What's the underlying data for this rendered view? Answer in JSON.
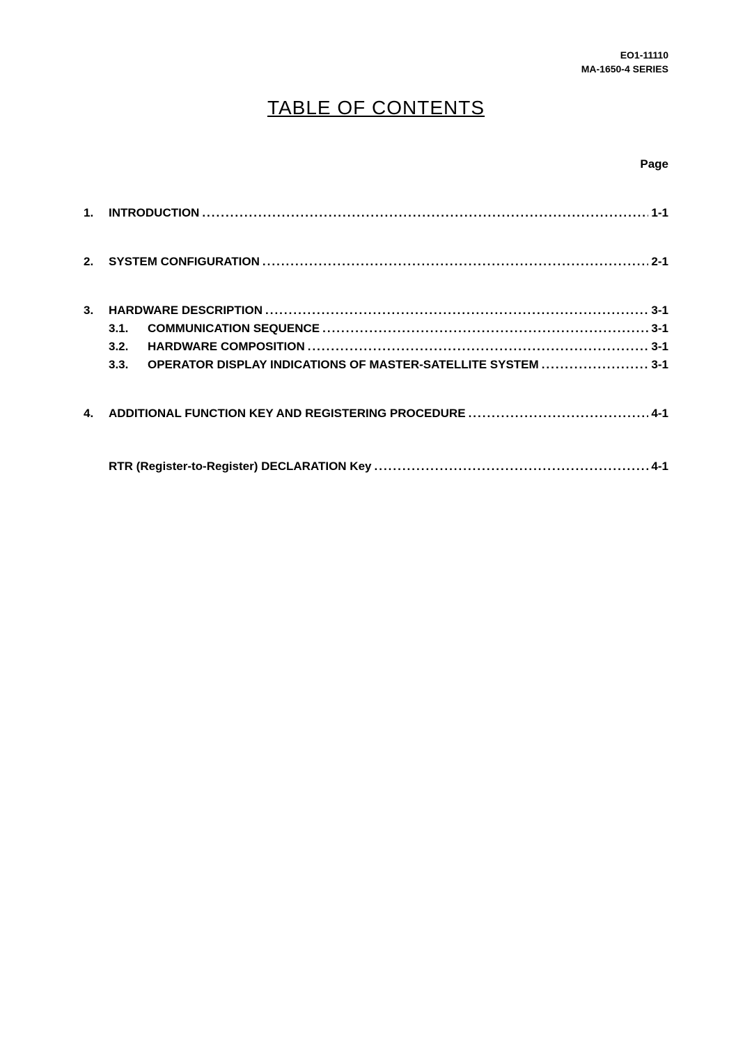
{
  "header": {
    "line1": "EO1-11110",
    "line2": "MA-1650-4 SERIES"
  },
  "title": "TABLE OF CONTENTS",
  "page_label": "Page",
  "entries": [
    {
      "num": "1.",
      "text": "INTRODUCTION",
      "page": "1-1",
      "has_subs": false
    },
    {
      "num": "2.",
      "text": "SYSTEM CONFIGURATION",
      "page": "2-1",
      "has_subs": false
    },
    {
      "num": "3.",
      "text": "HARDWARE DESCRIPTION",
      "page": "3-1",
      "has_subs": true,
      "subs": [
        {
          "num": "3.1.",
          "text": "COMMUNICATION SEQUENCE",
          "page": "3-1"
        },
        {
          "num": "3.2.",
          "text": "HARDWARE COMPOSITION",
          "page": "3-1"
        },
        {
          "num": "3.3.",
          "text": "OPERATOR DISPLAY INDICATIONS OF MASTER-SATELLITE SYSTEM",
          "page": "3-1"
        }
      ]
    },
    {
      "num": "4.",
      "text": "ADDITIONAL FUNCTION KEY AND REGISTERING PROCEDURE",
      "page": "4-1",
      "has_subs": false
    }
  ],
  "rtr": {
    "text": "RTR (Register-to-Register) DECLARATION Key",
    "page": "4-1"
  },
  "colors": {
    "background": "#ffffff",
    "text": "#000000"
  },
  "typography": {
    "header_fontsize": 14,
    "title_fontsize": 28,
    "body_fontsize": 17,
    "font_family": "Arial, Helvetica, sans-serif"
  }
}
